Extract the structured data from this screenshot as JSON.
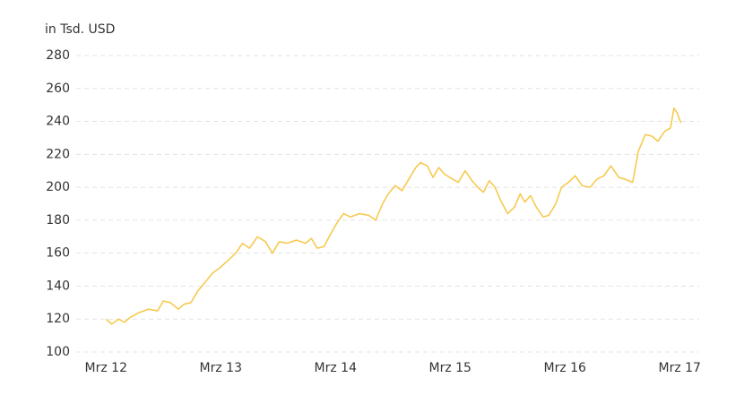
{
  "chart_data": {
    "type": "line",
    "y_label": "in Tsd. USD",
    "x": [
      0,
      0.05,
      0.11,
      0.16,
      0.21,
      0.29,
      0.37,
      0.45,
      0.5,
      0.56,
      0.63,
      0.68,
      0.74,
      0.8,
      0.86,
      0.93,
      0.99,
      1.07,
      1.13,
      1.19,
      1.25,
      1.32,
      1.39,
      1.45,
      1.51,
      1.58,
      1.66,
      1.74,
      1.79,
      1.84,
      1.9,
      1.96,
      2.01,
      2.07,
      2.13,
      2.21,
      2.29,
      2.35,
      2.41,
      2.46,
      2.52,
      2.58,
      2.64,
      2.7,
      2.74,
      2.8,
      2.85,
      2.9,
      2.95,
      3.02,
      3.07,
      3.13,
      3.19,
      3.24,
      3.29,
      3.34,
      3.39,
      3.44,
      3.5,
      3.56,
      3.61,
      3.65,
      3.7,
      3.75,
      3.81,
      3.86,
      3.92,
      3.97,
      4.03,
      4.09,
      4.15,
      4.22,
      4.28,
      4.34,
      4.4,
      4.47,
      4.52,
      4.59,
      4.64,
      4.7,
      4.76,
      4.81,
      4.87,
      4.92,
      4.95,
      4.98,
      5.01
    ],
    "series": [
      {
        "color": "#f6ca50",
        "values": [
          120,
          117,
          120,
          118,
          121,
          124,
          126,
          125,
          131,
          130,
          126,
          129,
          130,
          137,
          142,
          148,
          151,
          156,
          160,
          166,
          163,
          170,
          167,
          160,
          167,
          166,
          168,
          166,
          169,
          163,
          164,
          172,
          178,
          184,
          182,
          184,
          183,
          180,
          190,
          196,
          201,
          198,
          205,
          212,
          215,
          213,
          206,
          212,
          208,
          205,
          203,
          210,
          204,
          200,
          197,
          204,
          200,
          192,
          184,
          188,
          196,
          191,
          195,
          188,
          182,
          183,
          190,
          200,
          203,
          207,
          201,
          200,
          205,
          207,
          213,
          206,
          205,
          203,
          222,
          232,
          231,
          228,
          234,
          236,
          248,
          245,
          239
        ]
      }
    ],
    "xlim": [
      -0.26,
      5.17
    ],
    "xticks": [
      {
        "value": 0,
        "label": "Mrz 12"
      },
      {
        "value": 1,
        "label": "Mrz 13"
      },
      {
        "value": 2,
        "label": "Mrz 14"
      },
      {
        "value": 3,
        "label": "Mrz 15"
      },
      {
        "value": 4,
        "label": "Mrz 16"
      },
      {
        "value": 5,
        "label": "Mrz 17"
      }
    ],
    "ylim": [
      100,
      280
    ],
    "yticks": [
      100,
      120,
      140,
      160,
      180,
      200,
      220,
      240,
      260,
      280
    ],
    "grid": true
  }
}
